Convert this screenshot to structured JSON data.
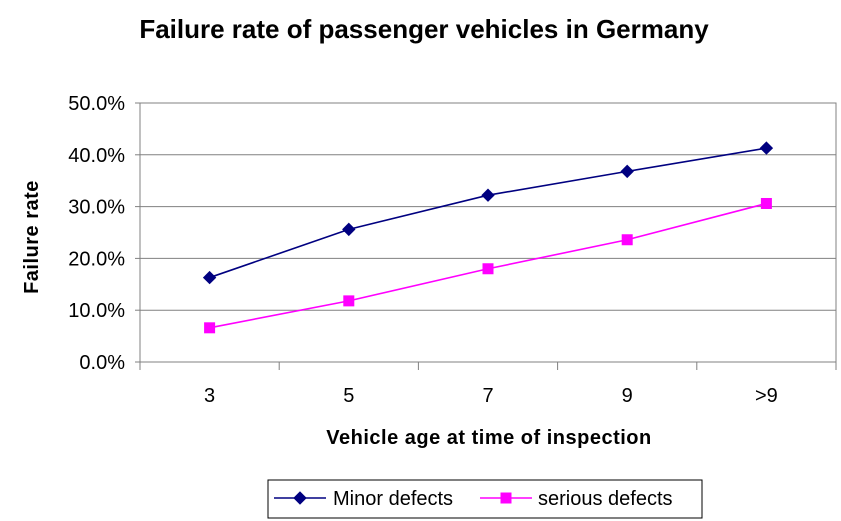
{
  "chart_data": {
    "type": "line",
    "title": "Failure rate of passenger vehicles in Germany",
    "xlabel": "Vehicle age at time of inspection",
    "ylabel": "Failure rate",
    "categories": [
      "3",
      "5",
      "7",
      "9",
      ">9"
    ],
    "ylim": [
      0,
      50
    ],
    "yticks": [
      "0.0%",
      "10.0%",
      "20.0%",
      "30.0%",
      "40.0%",
      "50.0%"
    ],
    "grid": true,
    "legend_position": "bottom",
    "series": [
      {
        "name": "Minor defects",
        "color": "#000080",
        "marker": "diamond",
        "values": [
          16.3,
          25.6,
          32.2,
          36.8,
          41.3
        ]
      },
      {
        "name": "serious defects",
        "color": "#ff00ff",
        "marker": "square",
        "values": [
          6.6,
          11.8,
          18.0,
          23.6,
          30.6
        ]
      }
    ]
  }
}
